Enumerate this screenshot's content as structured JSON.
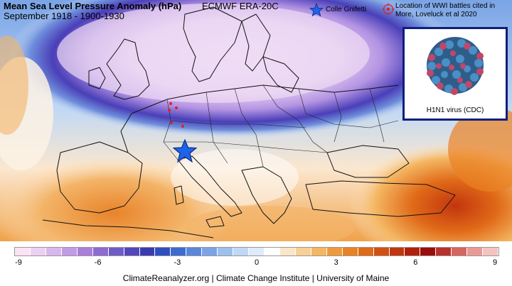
{
  "header": {
    "title": "Mean Sea Level Pressure Anomaly (hPa)",
    "subtitle": "September 1918 - 1900-1930",
    "dataset": "ECMWF ERA-20C"
  },
  "legend": {
    "star_label": "Colle Gnifetti",
    "target_label": "Location of WWI battles cited in More, Loveluck et al 2020",
    "star_color": "#1e63e8",
    "target_color": "#e02020"
  },
  "inset": {
    "caption": "H1N1 virus (CDC)",
    "border_color": "#0d1f7a"
  },
  "colorbar": {
    "min": -9,
    "max": 9,
    "tick_labels": [
      "-9",
      "-6",
      "-3",
      "0",
      "3",
      "6",
      "9"
    ],
    "colors": [
      "#fbe3f3",
      "#ecd0f1",
      "#d9b6ee",
      "#c39ae6",
      "#a97fdb",
      "#8e6bd0",
      "#6f5bc6",
      "#5247bb",
      "#3a3bb0",
      "#2f4fc0",
      "#3e6bd0",
      "#5a87dc",
      "#7aa4e6",
      "#9dc0ef",
      "#c0d8f5",
      "#dfeafa",
      "#ffffff",
      "#fce6c8",
      "#f8cf94",
      "#f4b662",
      "#ef9a3a",
      "#e98224",
      "#e06a18",
      "#d24f12",
      "#c2350e",
      "#b0200c",
      "#9a0d0a",
      "#b8312c",
      "#d66560",
      "#ea9a95",
      "#f4c3bf"
    ]
  },
  "markers": {
    "colle_gnifetti": "star",
    "battle_sites_count": 5
  },
  "credits": "ClimateReanalyzer.org | Climate Change Institute | University of Maine"
}
